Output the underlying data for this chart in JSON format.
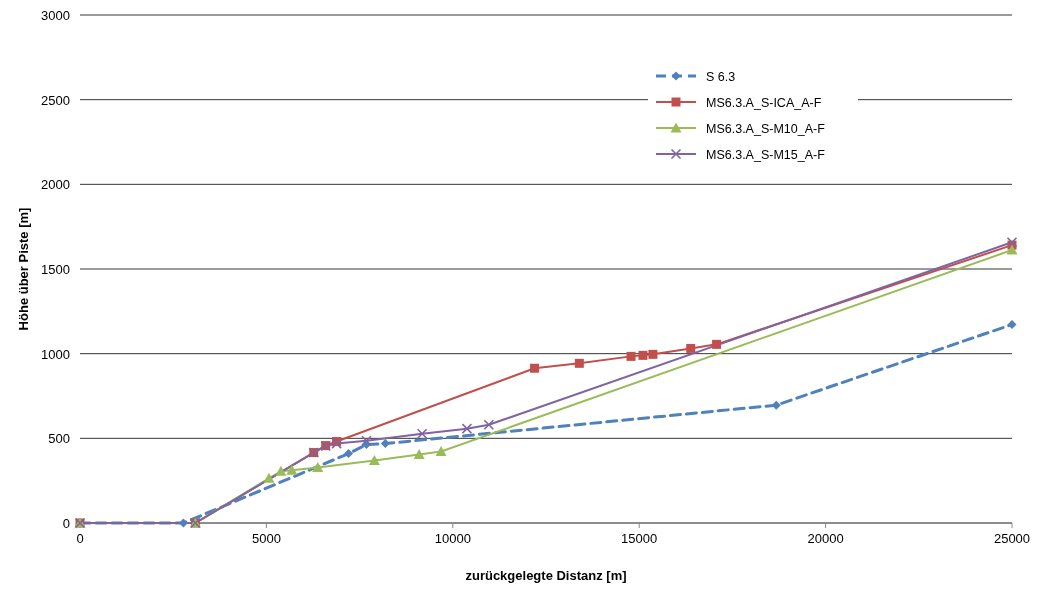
{
  "chart_data": {
    "type": "line",
    "xlabel": "zurückgelegte Distanz [m]",
    "ylabel": "Höhe über Piste [m]",
    "xlim": [
      0,
      25000
    ],
    "ylim": [
      0,
      3000
    ],
    "xticks": [
      0,
      5000,
      10000,
      15000,
      20000,
      25000
    ],
    "yticks": [
      0,
      500,
      1000,
      1500,
      2000,
      2500,
      3000
    ],
    "grid": "y",
    "legend": "top right",
    "series": [
      {
        "name": "S 6.3",
        "color": "#4f81bd",
        "line_style": "dashed",
        "marker": "diamond",
        "x": [
          0,
          2775,
          7204,
          7684,
          8190,
          18677,
          25000
        ],
        "values": [
          0,
          0,
          410,
          463,
          469,
          696,
          1172
        ]
      },
      {
        "name": "MS6.3.A_S-ICA_A-F",
        "color": "#c0504d",
        "line_style": "solid",
        "marker": "square",
        "x": [
          0,
          3095,
          6270,
          6590,
          6883,
          12193,
          13394,
          14781,
          15101,
          15368,
          16382,
          17076,
          25000
        ],
        "values": [
          0,
          0,
          416,
          457,
          481,
          914,
          943,
          984,
          990,
          996,
          1031,
          1055,
          1641
        ]
      },
      {
        "name": "MS6.3.A_S-M10_A-F",
        "color": "#9bbb59",
        "line_style": "solid",
        "marker": "triangle",
        "x": [
          0,
          3095,
          5069,
          5389,
          5683,
          6377,
          7897,
          9098,
          9685,
          25000
        ],
        "values": [
          0,
          0,
          264,
          305,
          311,
          328,
          369,
          404,
          422,
          1612
        ]
      },
      {
        "name": "MS6.3.A_S-M15_A-F",
        "color": "#8064a2",
        "line_style": "solid",
        "marker": "cross",
        "x": [
          0,
          3095,
          6270,
          6590,
          6883,
          7684,
          9178,
          10379,
          10966,
          25000
        ],
        "values": [
          0,
          0,
          416,
          455,
          469,
          486,
          527,
          557,
          580,
          1658
        ]
      }
    ]
  }
}
